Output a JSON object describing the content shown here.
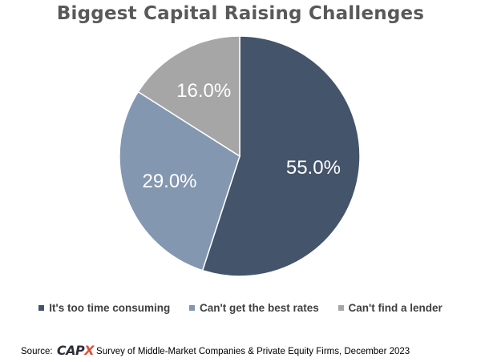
{
  "chart_data": {
    "type": "pie",
    "title": "Biggest Capital Raising Challenges",
    "categories": [
      "It's too time consuming",
      "Can't get the best rates",
      "Can't find a lender"
    ],
    "values": [
      55.0,
      29.0,
      16.0
    ],
    "data_labels": [
      "55.0%",
      "29.0%",
      "16.0%"
    ],
    "colors": [
      "#44546a",
      "#8497b0",
      "#a6a6a6"
    ],
    "legend_position": "bottom",
    "start_angle": "12 o'clock",
    "direction": "clockwise"
  },
  "source": {
    "prefix": "Source:",
    "logo_main": "CAP",
    "logo_accent": "X",
    "text": "Survey of Middle-Market Companies & Private Equity Firms, December 2023"
  }
}
